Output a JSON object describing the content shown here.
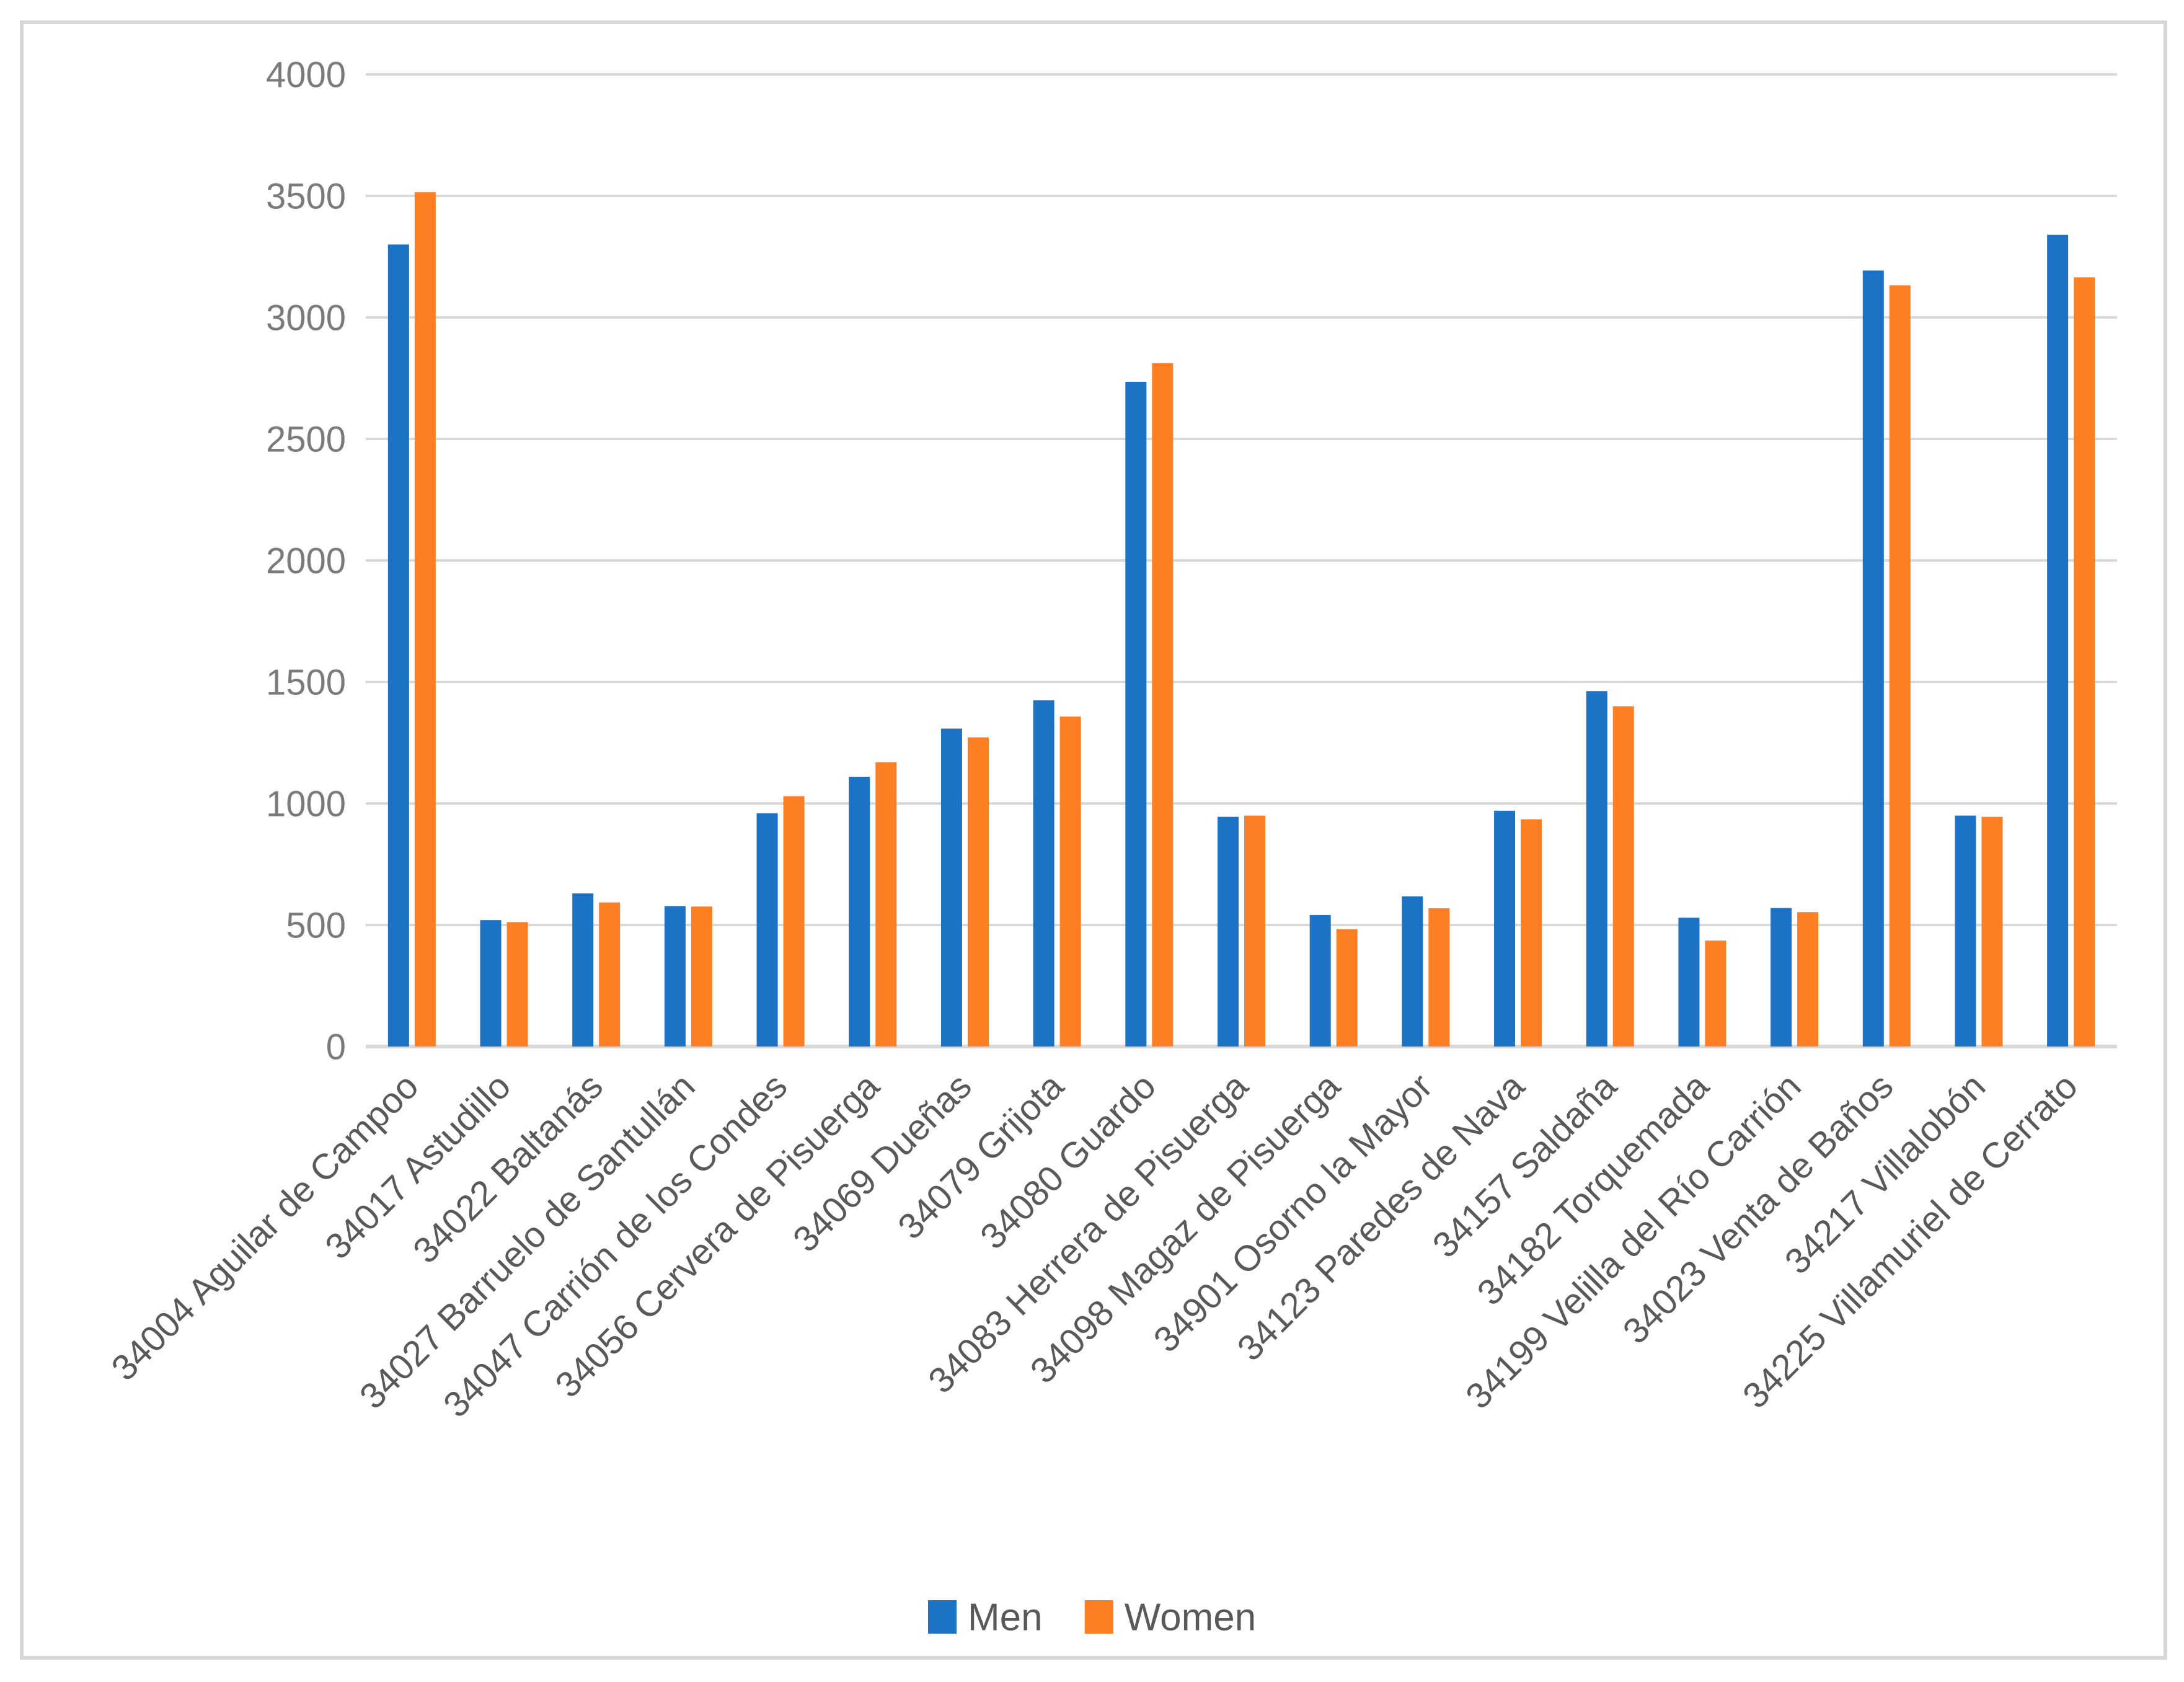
{
  "chart_data": {
    "type": "bar",
    "title": "",
    "xlabel": "",
    "ylabel": "",
    "ylim": [
      0,
      4000
    ],
    "ytick_step": 500,
    "ytick_labels": [
      "0",
      "500",
      "1000",
      "1500",
      "2000",
      "2500",
      "3000",
      "3500",
      "4000"
    ],
    "grid": true,
    "legend_position": "bottom",
    "categories": [
      "34004 Aguilar de Campoo",
      "34017 Astudillo",
      "34022 Baltanás",
      "34027 Barruelo de Santullán",
      "34047 Carrión de los Condes",
      "34056 Cervera de Pisuerga",
      "34069 Dueñas",
      "34079 Grijota",
      "34080 Guardo",
      "34083 Herrera de Pisuerga",
      "34098 Magaz de Pisuerga",
      "34901 Osorno la Mayor",
      "34123 Paredes de Nava",
      "34157 Saldaña",
      "34182 Torquemada",
      "34199 Velilla del Río Carrión",
      "34023 Venta de Baños",
      "34217 Villalobón",
      "34225 Villamuriel de Cerrato"
    ],
    "series": [
      {
        "name": "Men",
        "color": "#1C72C4",
        "values": [
          3300,
          520,
          630,
          578,
          960,
          1110,
          1308,
          1425,
          2735,
          945,
          541,
          618,
          970,
          1462,
          530,
          570,
          3193,
          950,
          3340
        ]
      },
      {
        "name": "Women",
        "color": "#FD7E23",
        "values": [
          3515,
          512,
          593,
          576,
          1030,
          1170,
          1272,
          1358,
          2812,
          950,
          483,
          569,
          935,
          1400,
          436,
          553,
          3132,
          945,
          3165
        ]
      }
    ]
  },
  "legend": {
    "items": [
      {
        "label": "Men",
        "color": "#1C72C4"
      },
      {
        "label": "Women",
        "color": "#FD7E23"
      }
    ]
  },
  "style_colors": {
    "gridline": "#D9D9D9",
    "axis_baseline": "#D9D9D9",
    "frame_border": "#D7D7D7",
    "tick_label": "#7A7A7A",
    "category_label": "#595959",
    "legend_label": "#595959",
    "background": "#FFFFFF"
  }
}
